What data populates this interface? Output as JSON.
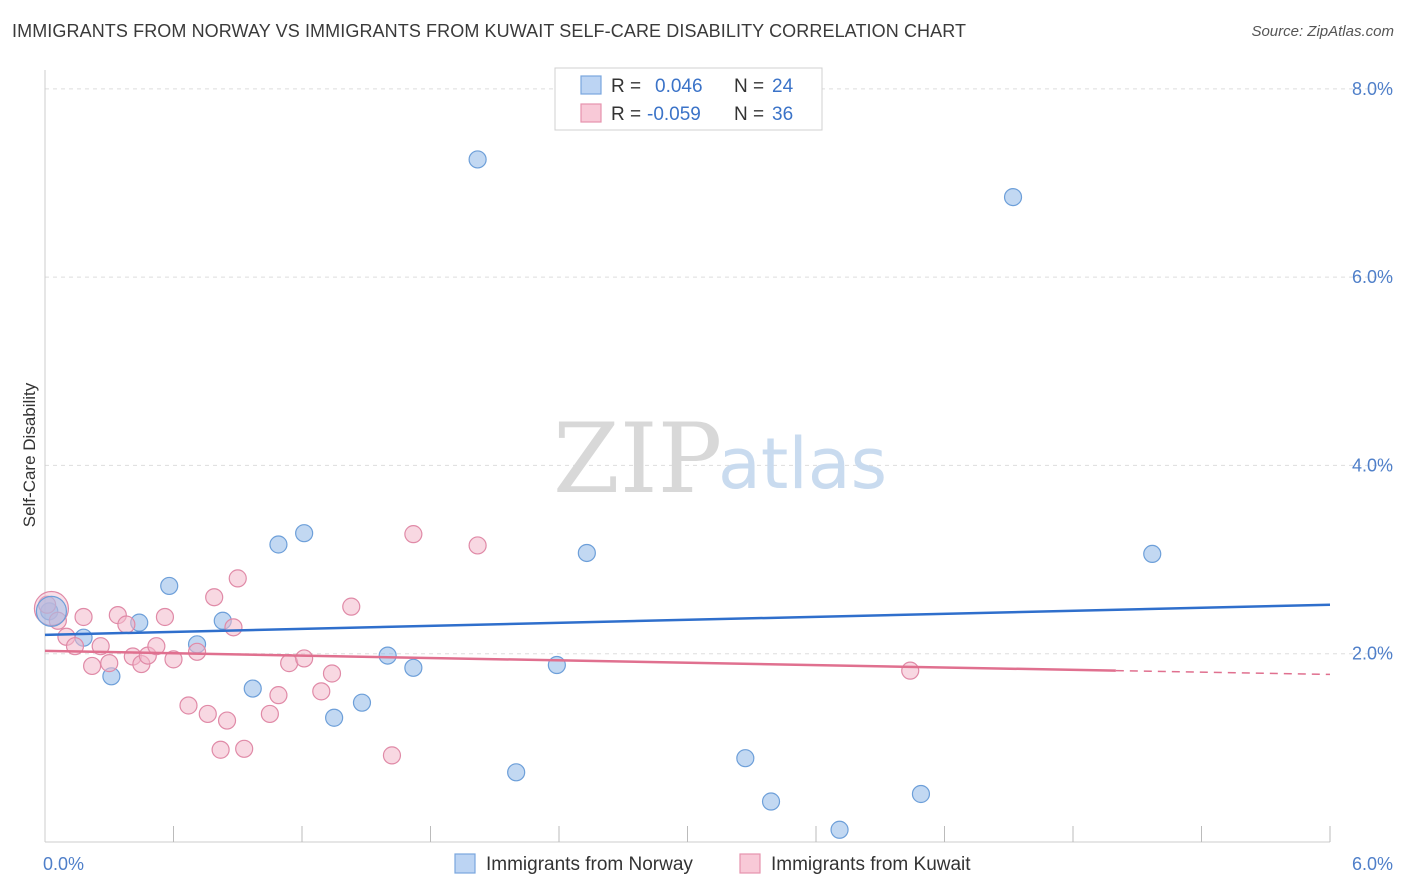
{
  "chart_data": {
    "type": "scatter",
    "title": "IMMIGRANTS FROM NORWAY VS IMMIGRANTS FROM KUWAIT SELF-CARE DISABILITY CORRELATION CHART",
    "source": "Source: ZipAtlas.com",
    "ylabel": "Self-Care Disability",
    "xlim": [
      0,
      6
    ],
    "ylim": [
      0,
      8.2
    ],
    "x_tick_labels": [
      "0.0%",
      "6.0%"
    ],
    "y_ticks": [
      2,
      4,
      6,
      8
    ],
    "y_tick_labels": [
      "2.0%",
      "4.0%",
      "6.0%",
      "8.0%"
    ],
    "watermark": {
      "zip": "ZIP",
      "atlas": "atlas"
    },
    "legend": {
      "rows": [
        {
          "r_label": "R =",
          "r_value": "0.046",
          "n_label": "N =",
          "n_value": "24"
        },
        {
          "r_label": "R =",
          "r_value": "-0.059",
          "n_label": "N =",
          "n_value": "36"
        }
      ]
    },
    "series": [
      {
        "name": "Immigrants from Norway",
        "color": "#8fb8e8",
        "stroke": "#6d9fd9",
        "line_color": "#2f6fcc",
        "trend": {
          "x0": 0,
          "y0": 2.2,
          "x1": 6,
          "y1": 2.52
        },
        "points": [
          [
            0.02,
            2.45
          ],
          [
            0.18,
            2.17
          ],
          [
            0.31,
            1.76
          ],
          [
            0.44,
            2.33
          ],
          [
            0.58,
            2.72
          ],
          [
            0.71,
            2.1
          ],
          [
            0.83,
            2.35
          ],
          [
            0.97,
            1.63
          ],
          [
            1.09,
            3.16
          ],
          [
            1.21,
            3.28
          ],
          [
            1.35,
            1.32
          ],
          [
            1.48,
            1.48
          ],
          [
            1.6,
            1.98
          ],
          [
            1.72,
            1.85
          ],
          [
            2.02,
            7.25
          ],
          [
            2.2,
            0.74
          ],
          [
            2.39,
            1.88
          ],
          [
            2.53,
            3.07
          ],
          [
            3.27,
            0.89
          ],
          [
            3.39,
            0.43
          ],
          [
            3.71,
            0.13
          ],
          [
            4.09,
            0.51
          ],
          [
            4.52,
            6.85
          ],
          [
            5.17,
            3.06
          ]
        ]
      },
      {
        "name": "Immigrants from Kuwait",
        "color": "#f2b8cb",
        "stroke": "#e08aa7",
        "line_color": "#e0708f",
        "trend": {
          "x0": 0,
          "y0": 2.03,
          "x1": 5.0,
          "y1": 1.82,
          "dash_to_x": 6,
          "dash_to_y": 1.78
        },
        "points": [
          [
            0.01,
            2.52
          ],
          [
            0.06,
            2.35
          ],
          [
            0.1,
            2.18
          ],
          [
            0.14,
            2.08
          ],
          [
            0.18,
            2.39
          ],
          [
            0.22,
            1.87
          ],
          [
            0.26,
            2.08
          ],
          [
            0.3,
            1.9
          ],
          [
            0.34,
            2.41
          ],
          [
            0.38,
            2.31
          ],
          [
            0.41,
            1.97
          ],
          [
            0.45,
            1.89
          ],
          [
            0.48,
            1.98
          ],
          [
            0.52,
            2.08
          ],
          [
            0.56,
            2.39
          ],
          [
            0.6,
            1.94
          ],
          [
            0.67,
            1.45
          ],
          [
            0.71,
            2.02
          ],
          [
            0.76,
            1.36
          ],
          [
            0.79,
            2.6
          ],
          [
            0.82,
            0.98
          ],
          [
            0.85,
            1.29
          ],
          [
            0.88,
            2.28
          ],
          [
            0.9,
            2.8
          ],
          [
            0.93,
            0.99
          ],
          [
            1.05,
            1.36
          ],
          [
            1.09,
            1.56
          ],
          [
            1.14,
            1.9
          ],
          [
            1.21,
            1.95
          ],
          [
            1.29,
            1.6
          ],
          [
            1.34,
            1.79
          ],
          [
            1.43,
            2.5
          ],
          [
            1.62,
            0.92
          ],
          [
            1.72,
            3.27
          ],
          [
            2.02,
            3.15
          ],
          [
            4.04,
            1.82
          ]
        ]
      }
    ]
  }
}
